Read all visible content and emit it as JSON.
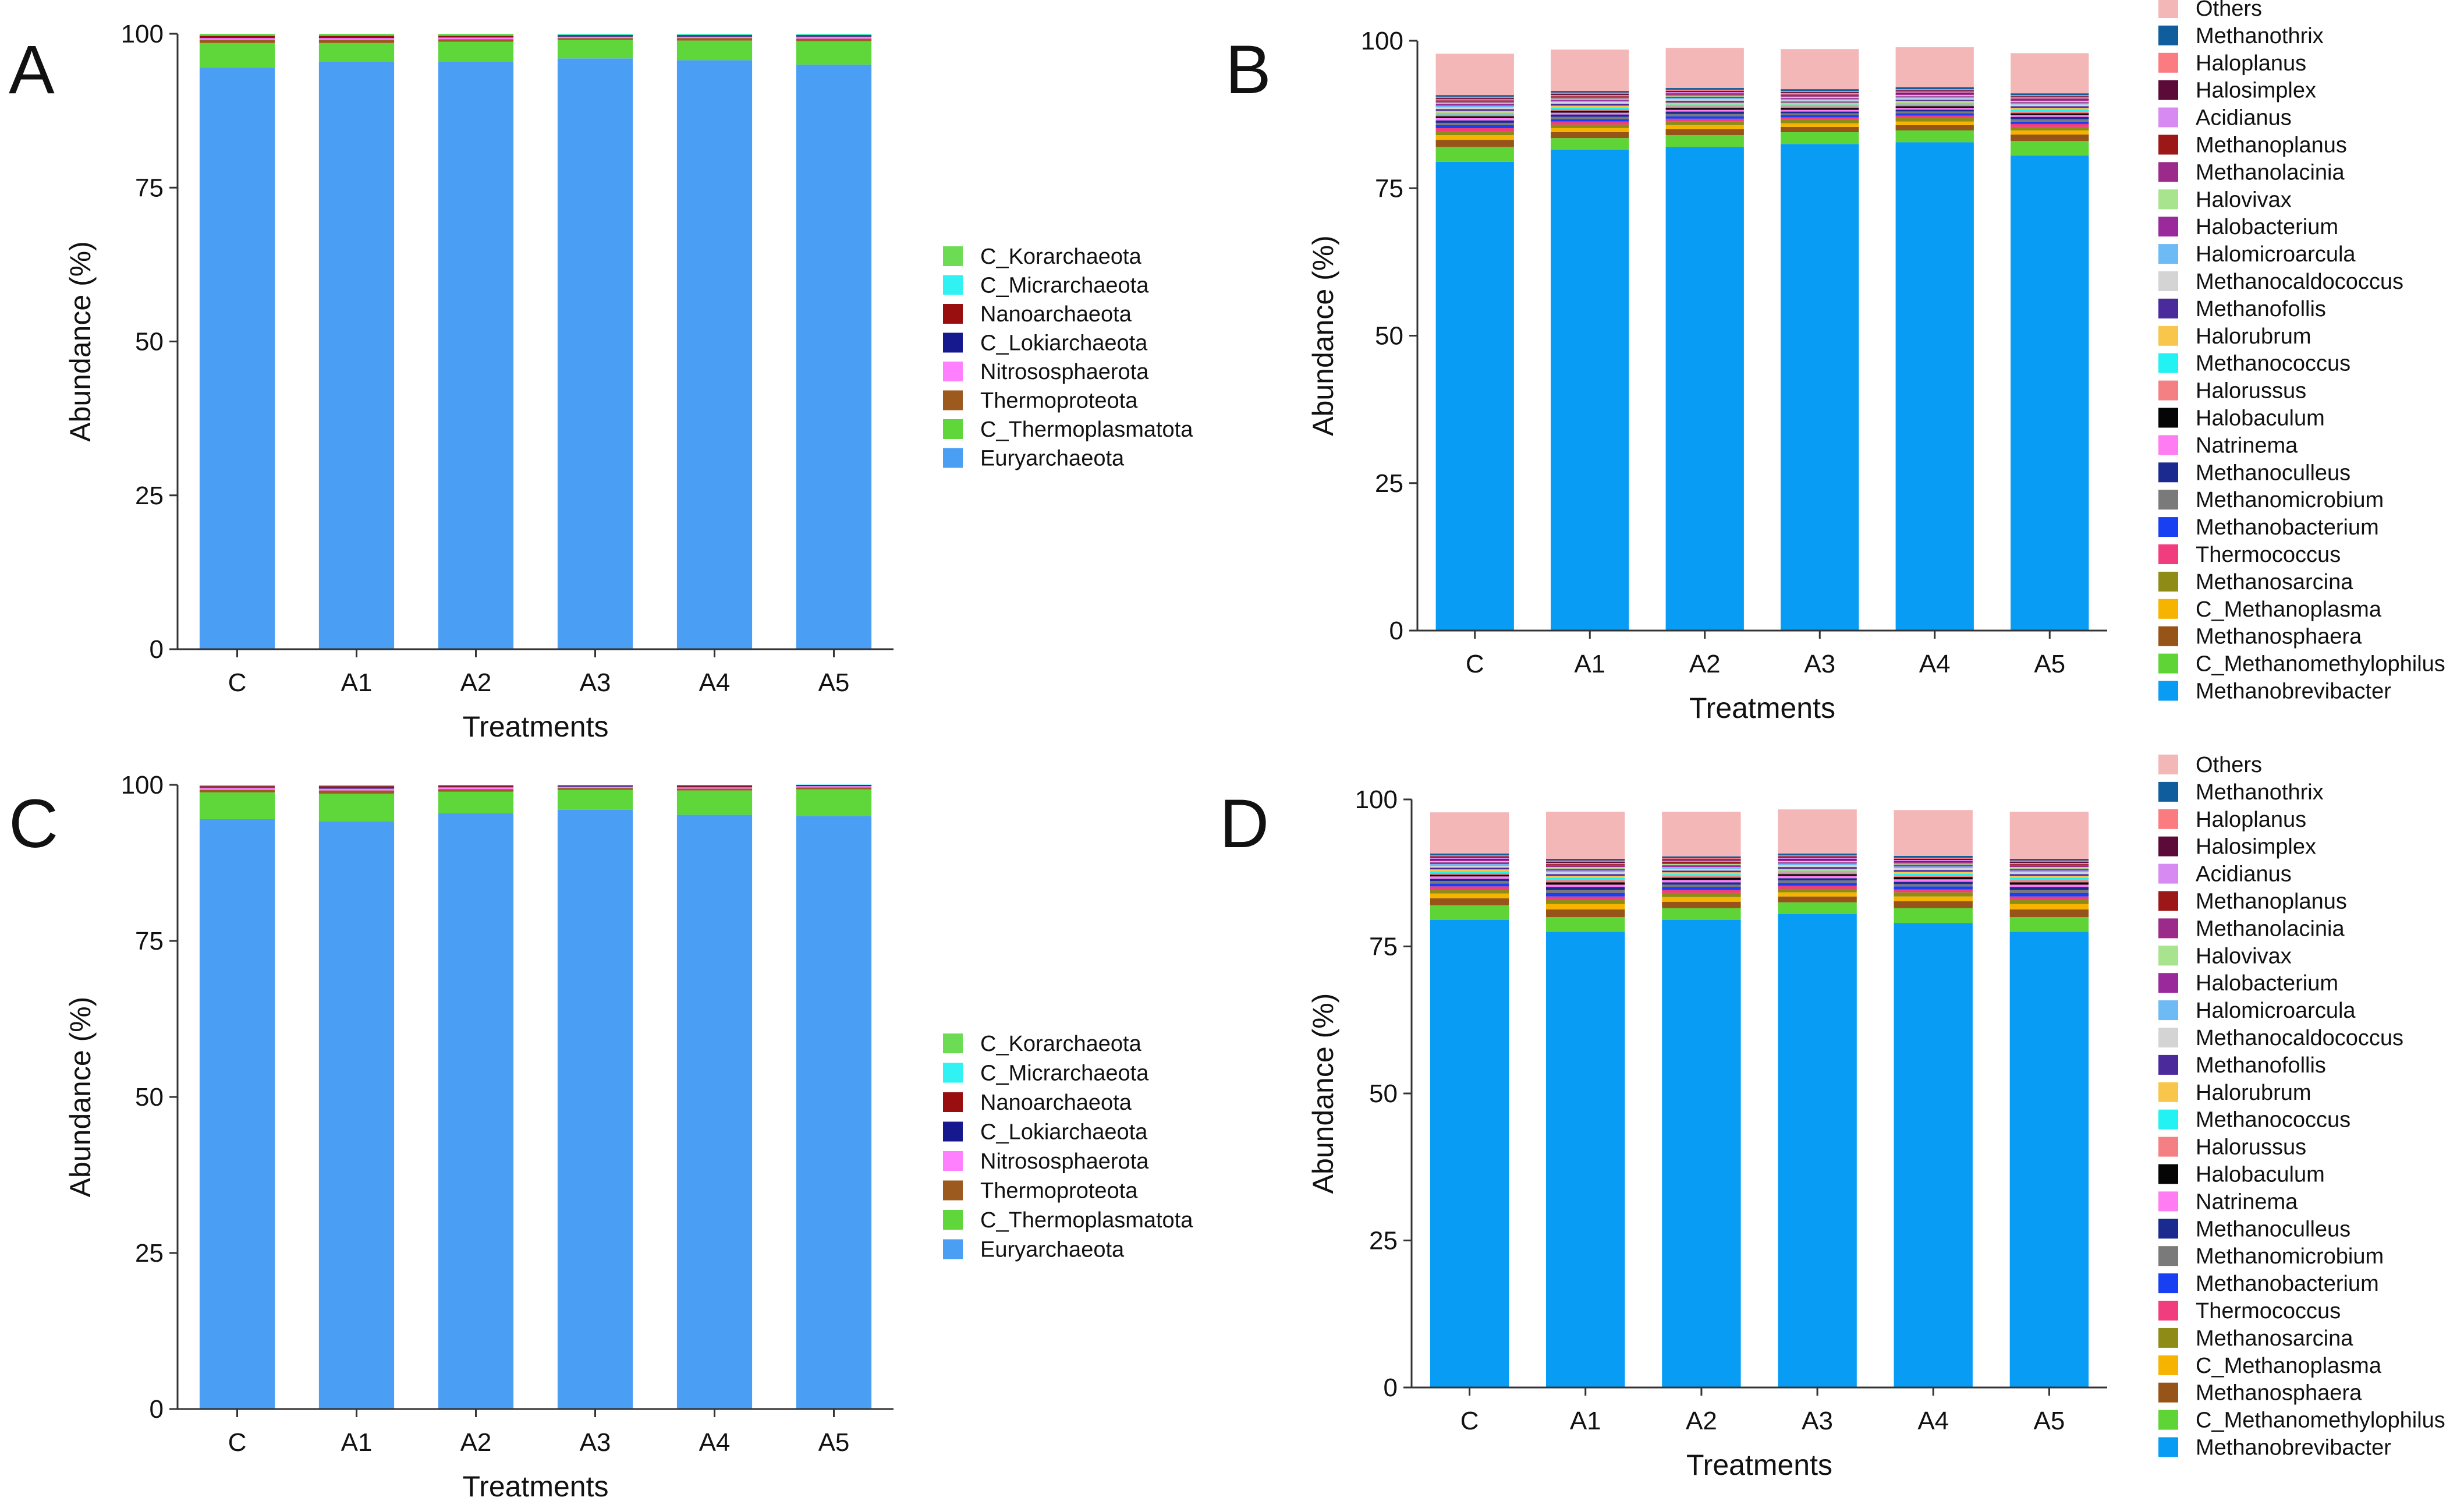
{
  "figure": {
    "panel_labels": [
      "A",
      "B",
      "C",
      "D"
    ]
  },
  "colors": {
    "axis": "#333333",
    "phylum": [
      "#4a9ff5",
      "#5fd63a",
      "#9c5a1e",
      "#ff80ff",
      "#16188e",
      "#990e0e",
      "#31f2f2",
      "#6ddc55"
    ],
    "genus": [
      "#089cf5",
      "#5ed436",
      "#965418",
      "#f6b300",
      "#8e8c16",
      "#f13c7e",
      "#183ff1",
      "#7a7a7a",
      "#1b2a8e",
      "#ff7cf2",
      "#050505",
      "#f58084",
      "#23f2f2",
      "#f8c64a",
      "#4b2a9c",
      "#d4d4d4",
      "#6dbaf5",
      "#9a2a9c",
      "#a8e38e",
      "#9c2a8a",
      "#9c1818",
      "#d78af2",
      "#5c0a38",
      "#fa7c80",
      "#0f5d9c",
      "#f4b7b8"
    ]
  },
  "chart_data": [
    {
      "panel": "A",
      "type": "bar",
      "stacked": true,
      "xlabel": "Treatments",
      "ylabel": "Abundance (%)",
      "ylim": [
        0,
        100
      ],
      "yticks": [
        "0",
        "25",
        "50",
        "75",
        "100"
      ],
      "categories": [
        "C",
        "A1",
        "A2",
        "A3",
        "A4",
        "A5"
      ],
      "legend": [
        "C_Korarchaeota",
        "C_Micrarchaeota",
        "Nanoarchaeota",
        "C_Lokiarchaeota",
        "Nitrososphaerota",
        "Thermoproteota",
        "C_Thermoplasmatota",
        "Euryarchaeota"
      ],
      "series": [
        {
          "name": "Euryarchaeota",
          "values": [
            94.5,
            95.5,
            95.5,
            96.0,
            95.7,
            95.0
          ]
        },
        {
          "name": "C_Thermoplasmatota",
          "values": [
            4.0,
            3.0,
            3.2,
            3.0,
            3.2,
            3.8
          ]
        },
        {
          "name": "Thermoproteota",
          "values": [
            0.5,
            0.5,
            0.4,
            0.3,
            0.4,
            0.4
          ]
        },
        {
          "name": "Nitrososphaerota",
          "values": [
            0.3,
            0.3,
            0.3,
            0.2,
            0.2,
            0.3
          ]
        },
        {
          "name": "C_Lokiarchaeota",
          "values": [
            0.1,
            0.1,
            0.1,
            0.1,
            0.1,
            0.1
          ]
        },
        {
          "name": "Nanoarchaeota",
          "values": [
            0.3,
            0.3,
            0.2,
            0.2,
            0.2,
            0.2
          ]
        },
        {
          "name": "C_Micrarchaeota",
          "values": [
            0.1,
            0.1,
            0.1,
            0.1,
            0.1,
            0.1
          ]
        },
        {
          "name": "C_Korarchaeota",
          "values": [
            0.2,
            0.2,
            0.2,
            0.1,
            0.1,
            0.1
          ]
        }
      ]
    },
    {
      "panel": "B",
      "type": "bar",
      "stacked": true,
      "xlabel": "Treatments",
      "ylabel": "Abundance (%)",
      "ylim": [
        0,
        100
      ],
      "yticks": [
        "0",
        "25",
        "50",
        "75",
        "100"
      ],
      "categories": [
        "C",
        "A1",
        "A2",
        "A3",
        "A4",
        "A5"
      ],
      "legend": [
        "Others",
        "Methanothrix",
        "Haloplanus",
        "Halosimplex",
        "Acidianus",
        "Methanoplanus",
        "Methanolacinia",
        "Halovivax",
        "Halobacterium",
        "Halomicroarcula",
        "Methanocaldococcus",
        "Methanofollis",
        "Halorubrum",
        "Methanococcus",
        "Halorussus",
        "Halobaculum",
        "Natrinema",
        "Methanoculleus",
        "Methanomicrobium",
        "Methanobacterium",
        "Thermococcus",
        "Methanosarcina",
        "C_Methanoplasma",
        "Methanosphaera",
        "C_Methanomethylophilus",
        "Methanobrevibacter"
      ],
      "series": [
        {
          "name": "Methanobrevibacter",
          "values": [
            79.5,
            81.5,
            82.0,
            82.5,
            82.8,
            80.5
          ]
        },
        {
          "name": "C_Methanomethylophilus",
          "values": [
            2.5,
            2.0,
            2.0,
            2.0,
            2.0,
            2.5
          ]
        },
        {
          "name": "Methanosphaera",
          "values": [
            1.2,
            1.0,
            1.0,
            0.9,
            0.9,
            1.1
          ]
        },
        {
          "name": "C_Methanoplasma",
          "values": [
            0.8,
            0.7,
            0.7,
            0.6,
            0.6,
            0.7
          ]
        },
        {
          "name": "Methanosarcina",
          "values": [
            0.7,
            0.6,
            0.6,
            0.6,
            0.6,
            0.6
          ]
        },
        {
          "name": "Thermococcus",
          "values": [
            0.5,
            0.5,
            0.5,
            0.4,
            0.4,
            0.5
          ]
        },
        {
          "name": "Methanobacterium",
          "values": [
            0.5,
            0.4,
            0.4,
            0.4,
            0.4,
            0.4
          ]
        },
        {
          "name": "Methanomicrobium",
          "values": [
            0.4,
            0.4,
            0.4,
            0.3,
            0.3,
            0.4
          ]
        },
        {
          "name": "Methanoculleus",
          "values": [
            0.4,
            0.4,
            0.4,
            0.3,
            0.3,
            0.4
          ]
        },
        {
          "name": "Natrinema",
          "values": [
            0.4,
            0.3,
            0.3,
            0.3,
            0.3,
            0.3
          ]
        },
        {
          "name": "Halobaculum",
          "values": [
            0.3,
            0.3,
            0.3,
            0.3,
            0.3,
            0.3
          ]
        },
        {
          "name": "Halorussus",
          "values": [
            0.3,
            0.3,
            0.3,
            0.3,
            0.3,
            0.3
          ]
        },
        {
          "name": "Methanococcus",
          "values": [
            0.3,
            0.3,
            0.3,
            0.3,
            0.3,
            0.3
          ]
        },
        {
          "name": "Halorubrum",
          "values": [
            0.3,
            0.3,
            0.3,
            0.3,
            0.3,
            0.3
          ]
        },
        {
          "name": "Methanofollis",
          "values": [
            0.3,
            0.3,
            0.3,
            0.2,
            0.2,
            0.3
          ]
        },
        {
          "name": "Methanocaldococcus",
          "values": [
            0.3,
            0.3,
            0.3,
            0.2,
            0.2,
            0.3
          ]
        },
        {
          "name": "Halomicroarcula",
          "values": [
            0.3,
            0.2,
            0.2,
            0.2,
            0.2,
            0.2
          ]
        },
        {
          "name": "Halobacterium",
          "values": [
            0.3,
            0.2,
            0.2,
            0.2,
            0.2,
            0.2
          ]
        },
        {
          "name": "Halovivax",
          "values": [
            0.2,
            0.2,
            0.2,
            0.2,
            0.2,
            0.2
          ]
        },
        {
          "name": "Methanolacinia",
          "values": [
            0.2,
            0.2,
            0.2,
            0.2,
            0.2,
            0.2
          ]
        },
        {
          "name": "Methanoplanus",
          "values": [
            0.2,
            0.2,
            0.2,
            0.2,
            0.2,
            0.2
          ]
        },
        {
          "name": "Acidianus",
          "values": [
            0.2,
            0.2,
            0.2,
            0.2,
            0.2,
            0.2
          ]
        },
        {
          "name": "Halosimplex",
          "values": [
            0.2,
            0.2,
            0.2,
            0.2,
            0.2,
            0.2
          ]
        },
        {
          "name": "Haloplanus",
          "values": [
            0.2,
            0.2,
            0.2,
            0.2,
            0.2,
            0.2
          ]
        },
        {
          "name": "Methanothrix",
          "values": [
            0.3,
            0.3,
            0.3,
            0.3,
            0.3,
            0.3
          ]
        },
        {
          "name": "Others",
          "values": [
            7.0,
            7.0,
            6.8,
            6.8,
            6.8,
            6.8
          ]
        }
      ]
    },
    {
      "panel": "C",
      "type": "bar",
      "stacked": true,
      "xlabel": "Treatments",
      "ylabel": "Abundance (%)",
      "ylim": [
        0,
        100
      ],
      "yticks": [
        "0",
        "25",
        "50",
        "75",
        "100"
      ],
      "categories": [
        "C",
        "A1",
        "A2",
        "A3",
        "A4",
        "A5"
      ],
      "legend": [
        "C_Korarchaeota",
        "C_Micrarchaeota",
        "Nanoarchaeota",
        "C_Lokiarchaeota",
        "Nitrososphaerota",
        "Thermoproteota",
        "C_Thermoplasmatota",
        "Euryarchaeota"
      ],
      "series": [
        {
          "name": "Euryarchaeota",
          "values": [
            94.5,
            94.2,
            95.5,
            96.0,
            95.2,
            95.0
          ]
        },
        {
          "name": "C_Thermoplasmatota",
          "values": [
            4.3,
            4.4,
            3.4,
            3.2,
            3.9,
            4.3
          ]
        },
        {
          "name": "Thermoproteota",
          "values": [
            0.4,
            0.5,
            0.4,
            0.3,
            0.3,
            0.3
          ]
        },
        {
          "name": "Nitrososphaerota",
          "values": [
            0.3,
            0.3,
            0.3,
            0.2,
            0.2,
            0.2
          ]
        },
        {
          "name": "C_Lokiarchaeota",
          "values": [
            0.1,
            0.1,
            0.1,
            0.1,
            0.1,
            0.1
          ]
        },
        {
          "name": "Nanoarchaeota",
          "values": [
            0.2,
            0.3,
            0.2,
            0.1,
            0.2,
            0.1
          ]
        },
        {
          "name": "C_Micrarchaeota",
          "values": [
            0.1,
            0.1,
            0.1,
            0.05,
            0.05,
            0.05
          ]
        },
        {
          "name": "C_Korarchaeota",
          "values": [
            0.1,
            0.1,
            0.0,
            0.05,
            0.05,
            0.0
          ]
        }
      ]
    },
    {
      "panel": "D",
      "type": "bar",
      "stacked": true,
      "xlabel": "Treatments",
      "ylabel": "Abundance (%)",
      "ylim": [
        0,
        100
      ],
      "yticks": [
        "0",
        "25",
        "50",
        "75",
        "100"
      ],
      "categories": [
        "C",
        "A1",
        "A2",
        "A3",
        "A4",
        "A5"
      ],
      "legend": [
        "Others",
        "Methanothrix",
        "Haloplanus",
        "Halosimplex",
        "Acidianus",
        "Methanoplanus",
        "Methanolacinia",
        "Halovivax",
        "Halobacterium",
        "Halomicroarcula",
        "Methanocaldococcus",
        "Methanofollis",
        "Halorubrum",
        "Methanococcus",
        "Halorussus",
        "Halobaculum",
        "Natrinema",
        "Methanoculleus",
        "Methanomicrobium",
        "Methanobacterium",
        "Thermococcus",
        "Methanosarcina",
        "C_Methanoplasma",
        "Methanosphaera",
        "C_Methanomethylophilus",
        "Methanobrevibacter"
      ],
      "series": [
        {
          "name": "Methanobrevibacter",
          "values": [
            79.5,
            77.5,
            79.5,
            80.5,
            79.0,
            77.5
          ]
        },
        {
          "name": "C_Methanomethylophilus",
          "values": [
            2.5,
            2.5,
            2.0,
            2.0,
            2.5,
            2.5
          ]
        },
        {
          "name": "Methanosphaera",
          "values": [
            1.2,
            1.3,
            1.1,
            1.0,
            1.2,
            1.3
          ]
        },
        {
          "name": "C_Methanoplasma",
          "values": [
            0.8,
            0.9,
            0.8,
            0.7,
            0.8,
            0.9
          ]
        },
        {
          "name": "Methanosarcina",
          "values": [
            0.7,
            0.7,
            0.7,
            0.6,
            0.7,
            0.7
          ]
        },
        {
          "name": "Thermococcus",
          "values": [
            0.5,
            0.6,
            0.5,
            0.5,
            0.5,
            0.6
          ]
        },
        {
          "name": "Methanobacterium",
          "values": [
            0.5,
            0.6,
            0.5,
            0.5,
            0.5,
            0.6
          ]
        },
        {
          "name": "Methanomicrobium",
          "values": [
            0.4,
            0.5,
            0.4,
            0.4,
            0.4,
            0.5
          ]
        },
        {
          "name": "Methanoculleus",
          "values": [
            0.4,
            0.5,
            0.4,
            0.4,
            0.4,
            0.5
          ]
        },
        {
          "name": "Natrinema",
          "values": [
            0.4,
            0.4,
            0.4,
            0.4,
            0.4,
            0.4
          ]
        },
        {
          "name": "Halobaculum",
          "values": [
            0.3,
            0.4,
            0.4,
            0.3,
            0.4,
            0.4
          ]
        },
        {
          "name": "Halorussus",
          "values": [
            0.3,
            0.4,
            0.3,
            0.3,
            0.3,
            0.4
          ]
        },
        {
          "name": "Methanococcus",
          "values": [
            0.3,
            0.4,
            0.3,
            0.3,
            0.3,
            0.4
          ]
        },
        {
          "name": "Halorubrum",
          "values": [
            0.3,
            0.3,
            0.3,
            0.3,
            0.3,
            0.3
          ]
        },
        {
          "name": "Methanofollis",
          "values": [
            0.3,
            0.3,
            0.3,
            0.3,
            0.3,
            0.3
          ]
        },
        {
          "name": "Methanocaldococcus",
          "values": [
            0.3,
            0.3,
            0.3,
            0.3,
            0.3,
            0.3
          ]
        },
        {
          "name": "Halomicroarcula",
          "values": [
            0.3,
            0.3,
            0.3,
            0.3,
            0.3,
            0.3
          ]
        },
        {
          "name": "Halobacterium",
          "values": [
            0.3,
            0.3,
            0.3,
            0.2,
            0.3,
            0.3
          ]
        },
        {
          "name": "Halovivax",
          "values": [
            0.2,
            0.3,
            0.2,
            0.2,
            0.2,
            0.3
          ]
        },
        {
          "name": "Methanolacinia",
          "values": [
            0.2,
            0.3,
            0.2,
            0.2,
            0.2,
            0.3
          ]
        },
        {
          "name": "Methanoplanus",
          "values": [
            0.2,
            0.2,
            0.2,
            0.2,
            0.2,
            0.2
          ]
        },
        {
          "name": "Acidianus",
          "values": [
            0.2,
            0.2,
            0.2,
            0.2,
            0.2,
            0.2
          ]
        },
        {
          "name": "Halosimplex",
          "values": [
            0.2,
            0.2,
            0.2,
            0.2,
            0.2,
            0.2
          ]
        },
        {
          "name": "Haloplanus",
          "values": [
            0.2,
            0.2,
            0.2,
            0.2,
            0.2,
            0.2
          ]
        },
        {
          "name": "Methanothrix",
          "values": [
            0.3,
            0.3,
            0.3,
            0.3,
            0.3,
            0.3
          ]
        },
        {
          "name": "Others",
          "values": [
            7.0,
            8.0,
            7.6,
            7.5,
            7.8,
            8.0
          ]
        }
      ]
    }
  ]
}
